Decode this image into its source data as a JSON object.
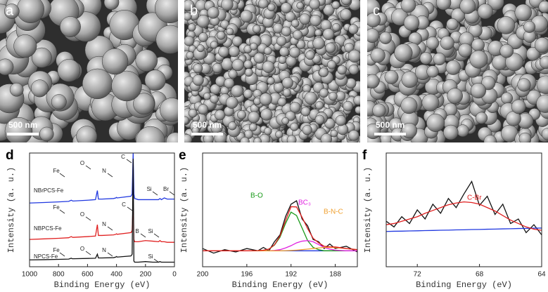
{
  "figure": {
    "images": [
      {
        "label": "a",
        "scale_bar": "500 nm"
      },
      {
        "label": "b",
        "scale_bar": "500 nm"
      },
      {
        "label": "c",
        "scale_bar": "500 nm"
      }
    ]
  },
  "chart_data": [
    {
      "type": "line",
      "panel_label": "d",
      "xlabel": "Binding Energy (eV)",
      "ylabel": "Intensity (a. u.)",
      "xlim": [
        1000,
        0
      ],
      "xticks": [
        1000,
        800,
        600,
        400,
        200,
        0
      ],
      "ylim": [
        0,
        100
      ],
      "x": [
        1000,
        900,
        800,
        730,
        712,
        705,
        700,
        600,
        545,
        532,
        525,
        500,
        420,
        405,
        400,
        395,
        300,
        292,
        285,
        280,
        275,
        250,
        200,
        150,
        110,
        100,
        90,
        70,
        50,
        0
      ],
      "series": [
        {
          "name": "NBrPCS-Fe",
          "color": "#2038e0",
          "values": [
            56,
            56.5,
            57,
            57.5,
            58.5,
            58,
            57.8,
            58.5,
            59,
            67,
            59.5,
            59.5,
            60,
            60.5,
            61,
            60.5,
            62,
            64,
            100,
            64,
            60,
            59,
            59,
            59,
            59,
            60,
            59,
            60.5,
            59.5,
            59.5
          ]
        },
        {
          "name": "NBPCS-Fe",
          "color": "#e02020",
          "values": [
            24,
            24.5,
            25,
            25.5,
            26.5,
            26,
            25.8,
            26.5,
            27,
            37,
            27.5,
            27.5,
            28,
            28.5,
            29,
            28.5,
            30,
            32,
            57,
            24,
            22,
            22,
            23,
            22.5,
            22,
            23,
            22,
            22,
            21.5,
            21.5
          ]
        },
        {
          "name": "NPCS-Fe",
          "color": "#111111",
          "values": [
            6,
            6.2,
            6.5,
            6.7,
            7.5,
            7,
            7,
            7.3,
            7.5,
            11,
            7.7,
            7.7,
            8,
            8.5,
            9,
            8.5,
            9.5,
            11,
            95,
            5,
            4,
            4,
            4.5,
            4,
            4,
            4.5,
            4,
            4,
            4,
            4
          ]
        }
      ],
      "annotations": [
        "Fe",
        "O",
        "N",
        "C",
        "Si",
        "Br",
        "Fe",
        "O",
        "N",
        "C",
        "B",
        "Si",
        "Fe",
        "O",
        "N",
        "Si"
      ]
    },
    {
      "type": "line",
      "panel_label": "e",
      "xlabel": "Binding Energy (eV)",
      "ylabel": "Intensity (a. u.)",
      "xlim": [
        200,
        186
      ],
      "xticks": [
        200,
        196,
        192,
        188
      ],
      "ylim": [
        0,
        100
      ],
      "x": [
        200,
        199,
        198,
        197,
        196,
        195,
        194.5,
        194,
        193.5,
        193,
        192.5,
        192,
        191.5,
        191,
        190.5,
        190,
        189.5,
        189,
        188.5,
        188,
        187,
        186
      ],
      "series": [
        {
          "color": "#2038e0",
          "values": [
            14,
            14,
            14,
            14,
            14,
            14,
            14,
            14,
            14,
            14,
            14,
            14,
            14,
            14,
            14,
            14,
            14,
            14,
            14,
            14,
            14,
            14
          ]
        },
        {
          "color": "#111111",
          "values": [
            16,
            12,
            15,
            13,
            16,
            14,
            17,
            14,
            22,
            28,
            44,
            55,
            58,
            42,
            36,
            24,
            22,
            16,
            20,
            16,
            18,
            13
          ]
        },
        {
          "name": "B-O",
          "color": "#1a9a1a",
          "values": [
            14,
            14,
            14,
            14,
            14,
            14.2,
            14.5,
            15.5,
            19,
            26,
            38,
            48,
            45,
            34,
            23,
            17,
            15,
            14,
            14,
            14,
            14,
            14
          ]
        },
        {
          "name": "BC₃",
          "color": "#e020e0",
          "values": [
            14,
            14,
            14,
            14,
            14,
            14,
            14,
            14,
            14.3,
            15,
            16.5,
            18.5,
            21,
            22.5,
            23,
            22,
            19.5,
            17,
            15.5,
            14.6,
            14,
            14
          ]
        },
        {
          "name": "B-N-C",
          "color": "#f0a030",
          "values": [
            14,
            14,
            14,
            14,
            14,
            14,
            14,
            14,
            14,
            14,
            14.1,
            14.3,
            14.6,
            15,
            15.5,
            16,
            16.5,
            17,
            17,
            16.8,
            16,
            15
          ]
        },
        {
          "color": "#e02020",
          "values": [
            14,
            14,
            14,
            14,
            14,
            14.2,
            14.5,
            15.5,
            19.3,
            27,
            40.5,
            52.8,
            52.6,
            43.5,
            33.5,
            25,
            21,
            18,
            17.5,
            17.4,
            16,
            15
          ]
        }
      ]
    },
    {
      "type": "line",
      "panel_label": "f",
      "xlabel": "Binding Energy (eV)",
      "ylabel": "Intensity (a. u.)",
      "xlim": [
        74,
        64
      ],
      "xticks": [
        72,
        68,
        64
      ],
      "ylim": [
        0,
        100
      ],
      "x": [
        74,
        73.5,
        73,
        72.5,
        72,
        71.5,
        71,
        70.5,
        70,
        69.5,
        69,
        68.5,
        68,
        67.5,
        67,
        66.5,
        66,
        65.5,
        65,
        64.5,
        64
      ],
      "series": [
        {
          "color": "#111111",
          "values": [
            40,
            35,
            44,
            38,
            50,
            42,
            55,
            47,
            60,
            52,
            64,
            75,
            54,
            62,
            46,
            55,
            38,
            42,
            30,
            37,
            28
          ]
        },
        {
          "color": "#2038e0",
          "values": [
            31,
            31.2,
            31.3,
            31.5,
            31.6,
            31.8,
            31.9,
            32.1,
            32.2,
            32.4,
            32.5,
            32.7,
            32.8,
            33,
            33.1,
            33.3,
            33.4,
            33.6,
            33.7,
            33.9,
            34
          ]
        },
        {
          "name": "C-Br",
          "color": "#e02020",
          "values": [
            37,
            38,
            40,
            42,
            44,
            47,
            49.5,
            52,
            54.5,
            56,
            57,
            56.5,
            55,
            52,
            49,
            45,
            41,
            38,
            35,
            33,
            32
          ]
        }
      ]
    }
  ]
}
